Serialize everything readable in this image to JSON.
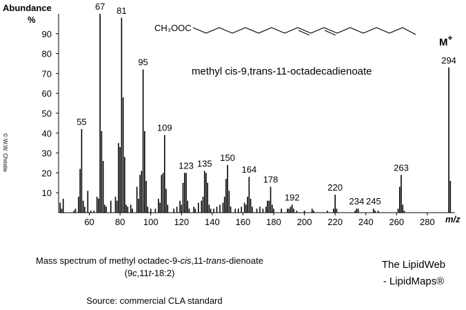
{
  "chart_data": {
    "type": "spectrum",
    "y_axis_label": "Abundance",
    "y_unit": "%",
    "x_axis_label": "m/z",
    "structure_label": "CH₃OOC",
    "compound_name": "methyl cis-9,trans-11-octadecadienoate",
    "molecular_ion": [
      "M",
      "+"
    ],
    "copyright": "© W.W. Christie",
    "caption_line1": [
      "Mass spectrum of methyl octadec-9-",
      "cis",
      ",11-",
      "trans",
      "-dienoate"
    ],
    "caption_line2": [
      "(9",
      "c",
      ",11",
      "t",
      "-18:2)"
    ],
    "source": "Source:  commercial CLA standard",
    "brand_line1": "The LipidWeb",
    "brand_line2": "- LipidMaps®",
    "color": "#000000",
    "label_color": "#0000cc",
    "xlim": [
      40,
      298
    ],
    "ylim": [
      0,
      100
    ],
    "xticks": [
      60,
      80,
      100,
      120,
      140,
      160,
      180,
      200,
      220,
      240,
      260,
      280
    ],
    "yticks": [
      10,
      20,
      30,
      40,
      50,
      60,
      70,
      80,
      90
    ],
    "x": [
      41,
      42,
      43,
      50,
      51,
      53,
      54,
      55,
      56,
      57,
      59,
      61,
      63,
      65,
      66,
      67,
      68,
      69,
      70,
      71,
      74,
      77,
      78,
      79,
      80,
      81,
      82,
      83,
      84,
      85,
      87,
      88,
      91,
      92,
      93,
      94,
      95,
      96,
      97,
      98,
      100,
      103,
      105,
      106,
      107,
      108,
      109,
      110,
      111,
      115,
      117,
      119,
      120,
      121,
      122,
      123,
      124,
      125,
      128,
      129,
      131,
      133,
      134,
      135,
      136,
      137,
      138,
      139,
      141,
      143,
      145,
      147,
      148,
      149,
      150,
      151,
      152,
      155,
      157,
      159,
      161,
      162,
      163,
      164,
      165,
      166,
      169,
      171,
      173,
      175,
      176,
      177,
      178,
      179,
      180,
      185,
      189,
      190,
      191,
      192,
      193,
      195,
      200,
      205,
      206,
      215,
      219,
      220,
      221,
      233,
      234,
      235,
      245,
      246,
      248,
      261,
      262,
      263,
      264,
      265,
      294,
      295
    ],
    "values": [
      5,
      2,
      7,
      1,
      2,
      8,
      22,
      42,
      6,
      3,
      11,
      1,
      1,
      8,
      7,
      100,
      41,
      26,
      4,
      3,
      6,
      8,
      6,
      35,
      33,
      98,
      58,
      28,
      4,
      3,
      4,
      2,
      13,
      7,
      19,
      21,
      72,
      41,
      16,
      3,
      2,
      2,
      7,
      5,
      19,
      20,
      39,
      12,
      4,
      2,
      3,
      6,
      4,
      15,
      20,
      20,
      6,
      2,
      3,
      2,
      5,
      6,
      8,
      21,
      20,
      15,
      4,
      2,
      2,
      3,
      4,
      5,
      8,
      17,
      24,
      11,
      3,
      2,
      2,
      3,
      5,
      4,
      8,
      18,
      7,
      3,
      2,
      3,
      2,
      3,
      6,
      6,
      13,
      4,
      2,
      2,
      2,
      2,
      3,
      4,
      2,
      1,
      1,
      2,
      1,
      1,
      2,
      9,
      2,
      1,
      2,
      2,
      2,
      1,
      1,
      2,
      13,
      19,
      4,
      1,
      73,
      16
    ],
    "peak_labels": [
      55,
      67,
      81,
      95,
      109,
      123,
      135,
      150,
      164,
      178,
      192,
      220,
      234,
      245,
      263,
      294
    ]
  }
}
